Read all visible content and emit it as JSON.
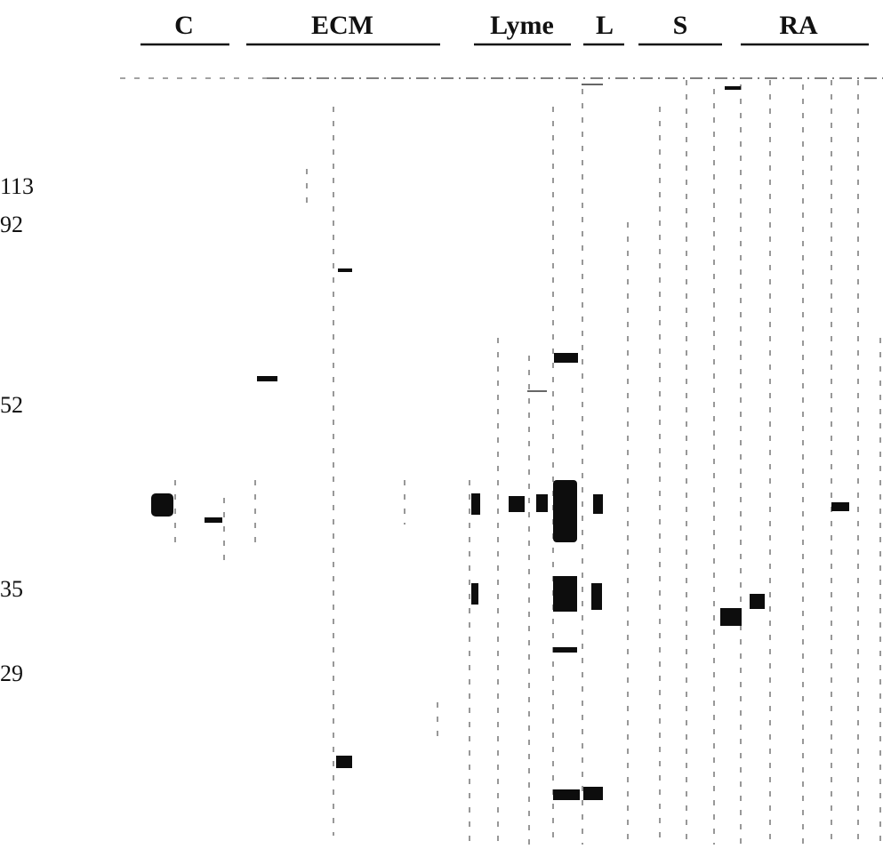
{
  "groups": [
    "C",
    "ECM",
    "Lyme",
    "L",
    "S",
    "RA"
  ],
  "markers": [
    "113",
    "92",
    "52",
    "35",
    "29"
  ]
}
